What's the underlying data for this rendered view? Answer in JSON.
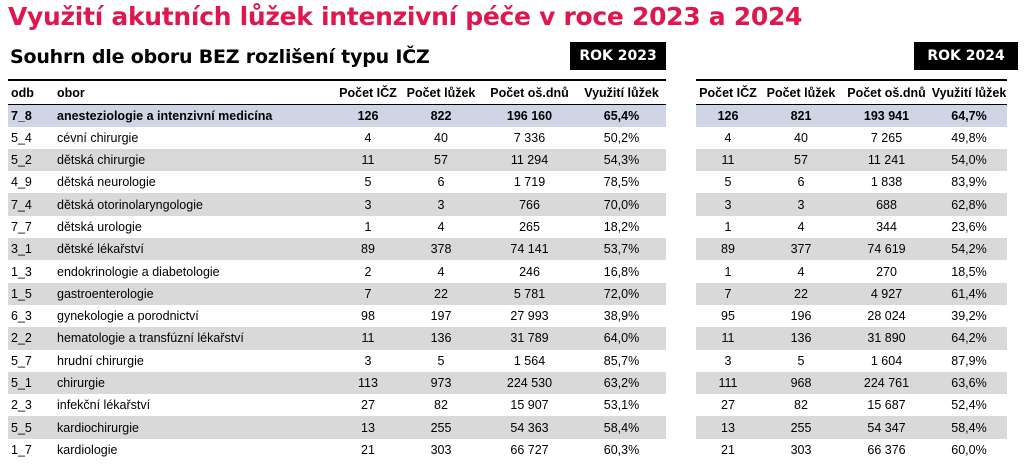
{
  "title": "Využití akutních lůžek intenzivní péče v roce 2023 a 2024",
  "subtitle": "Souhrn dle oboru BEZ rozlišení typu IČZ",
  "year_left": "ROK 2023",
  "year_right": "ROK 2024",
  "columns": {
    "odb": "odb",
    "obor": "obor",
    "icz": "Počet IČZ",
    "luzek": "Počet lůžek",
    "osdnu": "Počet oš.dnů",
    "vyuziti": "Využití lůžek"
  },
  "rows": [
    {
      "odb": "7_8",
      "obor": "anesteziologie a intenzivní medicína",
      "y2023": {
        "icz": "126",
        "luzek": "822",
        "osdnu": "196 160",
        "vyuziti": "65,4%"
      },
      "y2024": {
        "icz": "126",
        "luzek": "821",
        "osdnu": "193 941",
        "vyuziti": "64,7%"
      }
    },
    {
      "odb": "5_4",
      "obor": "cévní chirurgie",
      "y2023": {
        "icz": "4",
        "luzek": "40",
        "osdnu": "7 336",
        "vyuziti": "50,2%"
      },
      "y2024": {
        "icz": "4",
        "luzek": "40",
        "osdnu": "7 265",
        "vyuziti": "49,8%"
      }
    },
    {
      "odb": "5_2",
      "obor": "dětská chirurgie",
      "y2023": {
        "icz": "11",
        "luzek": "57",
        "osdnu": "11 294",
        "vyuziti": "54,3%"
      },
      "y2024": {
        "icz": "11",
        "luzek": "57",
        "osdnu": "11 241",
        "vyuziti": "54,0%"
      }
    },
    {
      "odb": "4_9",
      "obor": "dětská neurologie",
      "y2023": {
        "icz": "5",
        "luzek": "6",
        "osdnu": "1 719",
        "vyuziti": "78,5%"
      },
      "y2024": {
        "icz": "5",
        "luzek": "6",
        "osdnu": "1 838",
        "vyuziti": "83,9%"
      }
    },
    {
      "odb": "7_4",
      "obor": "dětská otorinolaryngologie",
      "y2023": {
        "icz": "3",
        "luzek": "3",
        "osdnu": "766",
        "vyuziti": "70,0%"
      },
      "y2024": {
        "icz": "3",
        "luzek": "3",
        "osdnu": "688",
        "vyuziti": "62,8%"
      }
    },
    {
      "odb": "7_7",
      "obor": "dětská urologie",
      "y2023": {
        "icz": "1",
        "luzek": "4",
        "osdnu": "265",
        "vyuziti": "18,2%"
      },
      "y2024": {
        "icz": "1",
        "luzek": "4",
        "osdnu": "344",
        "vyuziti": "23,6%"
      }
    },
    {
      "odb": "3_1",
      "obor": "dětské lékařství",
      "y2023": {
        "icz": "89",
        "luzek": "378",
        "osdnu": "74 141",
        "vyuziti": "53,7%"
      },
      "y2024": {
        "icz": "89",
        "luzek": "377",
        "osdnu": "74 619",
        "vyuziti": "54,2%"
      }
    },
    {
      "odb": "1_3",
      "obor": "endokrinologie a diabetologie",
      "y2023": {
        "icz": "2",
        "luzek": "4",
        "osdnu": "246",
        "vyuziti": "16,8%"
      },
      "y2024": {
        "icz": "1",
        "luzek": "4",
        "osdnu": "270",
        "vyuziti": "18,5%"
      }
    },
    {
      "odb": "1_5",
      "obor": "gastroenterologie",
      "y2023": {
        "icz": "7",
        "luzek": "22",
        "osdnu": "5 781",
        "vyuziti": "72,0%"
      },
      "y2024": {
        "icz": "7",
        "luzek": "22",
        "osdnu": "4 927",
        "vyuziti": "61,4%"
      }
    },
    {
      "odb": "6_3",
      "obor": "gynekologie a porodnictví",
      "y2023": {
        "icz": "98",
        "luzek": "197",
        "osdnu": "27 993",
        "vyuziti": "38,9%"
      },
      "y2024": {
        "icz": "95",
        "luzek": "196",
        "osdnu": "28 024",
        "vyuziti": "39,2%"
      }
    },
    {
      "odb": "2_2",
      "obor": "hematologie a transfúzní lékařství",
      "y2023": {
        "icz": "11",
        "luzek": "136",
        "osdnu": "31 789",
        "vyuziti": "64,0%"
      },
      "y2024": {
        "icz": "11",
        "luzek": "136",
        "osdnu": "31 890",
        "vyuziti": "64,2%"
      }
    },
    {
      "odb": "5_7",
      "obor": "hrudní chirurgie",
      "y2023": {
        "icz": "3",
        "luzek": "5",
        "osdnu": "1 564",
        "vyuziti": "85,7%"
      },
      "y2024": {
        "icz": "3",
        "luzek": "5",
        "osdnu": "1 604",
        "vyuziti": "87,9%"
      }
    },
    {
      "odb": "5_1",
      "obor": "chirurgie",
      "y2023": {
        "icz": "113",
        "luzek": "973",
        "osdnu": "224 530",
        "vyuziti": "63,2%"
      },
      "y2024": {
        "icz": "111",
        "luzek": "968",
        "osdnu": "224 761",
        "vyuziti": "63,6%"
      }
    },
    {
      "odb": "2_3",
      "obor": "infekční lékařství",
      "y2023": {
        "icz": "27",
        "luzek": "82",
        "osdnu": "15 907",
        "vyuziti": "53,1%"
      },
      "y2024": {
        "icz": "27",
        "luzek": "82",
        "osdnu": "15 687",
        "vyuziti": "52,4%"
      }
    },
    {
      "odb": "5_5",
      "obor": "kardiochirurgie",
      "y2023": {
        "icz": "13",
        "luzek": "255",
        "osdnu": "54 363",
        "vyuziti": "58,4%"
      },
      "y2024": {
        "icz": "13",
        "luzek": "255",
        "osdnu": "54 347",
        "vyuziti": "58,4%"
      }
    },
    {
      "odb": "1_7",
      "obor": "kardiologie",
      "y2023": {
        "icz": "21",
        "luzek": "303",
        "osdnu": "66 727",
        "vyuziti": "60,3%"
      },
      "y2024": {
        "icz": "21",
        "luzek": "303",
        "osdnu": "66 376",
        "vyuziti": "60,0%"
      }
    }
  ],
  "colors": {
    "title": "#e0174f",
    "highlight_row": "#cfd5e6",
    "stripe_row": "#d9d9d9",
    "year_box": "#000000"
  }
}
